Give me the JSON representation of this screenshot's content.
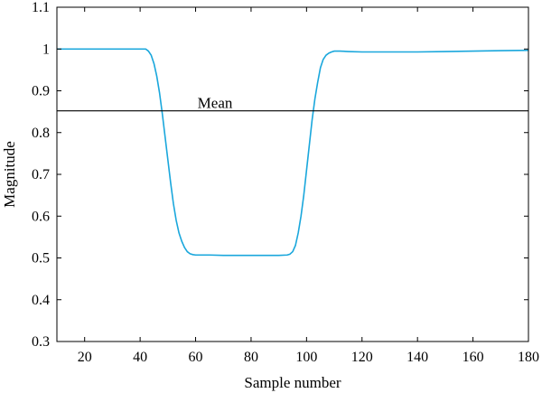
{
  "chart_data": {
    "type": "line",
    "title": "",
    "xlabel": "Sample number",
    "ylabel": "Magnitude",
    "xlim": [
      10,
      180
    ],
    "ylim": [
      0.3,
      1.1
    ],
    "xticks": [
      20,
      40,
      60,
      80,
      100,
      120,
      140,
      160,
      180
    ],
    "yticks": [
      0.3,
      0.4,
      0.5,
      0.6,
      0.7,
      0.8,
      0.9,
      1,
      1.1
    ],
    "grid": false,
    "series": [
      {
        "color": "#1aa7dc",
        "x": [
          10,
          20,
          30,
          40,
          42,
          43,
          44,
          45,
          46,
          47,
          48,
          49,
          50,
          51,
          52,
          53,
          54,
          55,
          56,
          57,
          58,
          59,
          60,
          62,
          65,
          70,
          75,
          80,
          85,
          90,
          93,
          94,
          95,
          96,
          97,
          98,
          99,
          100,
          101,
          102,
          103,
          104,
          105,
          106,
          107,
          108,
          109,
          110,
          112,
          115,
          120,
          130,
          140,
          150,
          160,
          170,
          180
        ],
        "y": [
          1.0,
          1.0,
          1.0,
          1.0,
          1.0,
          0.995,
          0.985,
          0.965,
          0.935,
          0.895,
          0.845,
          0.79,
          0.735,
          0.68,
          0.63,
          0.59,
          0.56,
          0.54,
          0.525,
          0.515,
          0.51,
          0.508,
          0.507,
          0.507,
          0.507,
          0.506,
          0.506,
          0.506,
          0.506,
          0.506,
          0.507,
          0.509,
          0.515,
          0.53,
          0.56,
          0.6,
          0.65,
          0.71,
          0.77,
          0.83,
          0.88,
          0.92,
          0.955,
          0.975,
          0.985,
          0.99,
          0.993,
          0.995,
          0.995,
          0.994,
          0.993,
          0.993,
          0.993,
          0.994,
          0.995,
          0.996,
          0.997
        ]
      },
      {
        "color": "#000000",
        "x": [
          10,
          180
        ],
        "y": [
          0.852,
          0.852
        ]
      }
    ],
    "annotations": [
      {
        "text": "Mean",
        "x": 67,
        "y": 0.87
      }
    ]
  }
}
